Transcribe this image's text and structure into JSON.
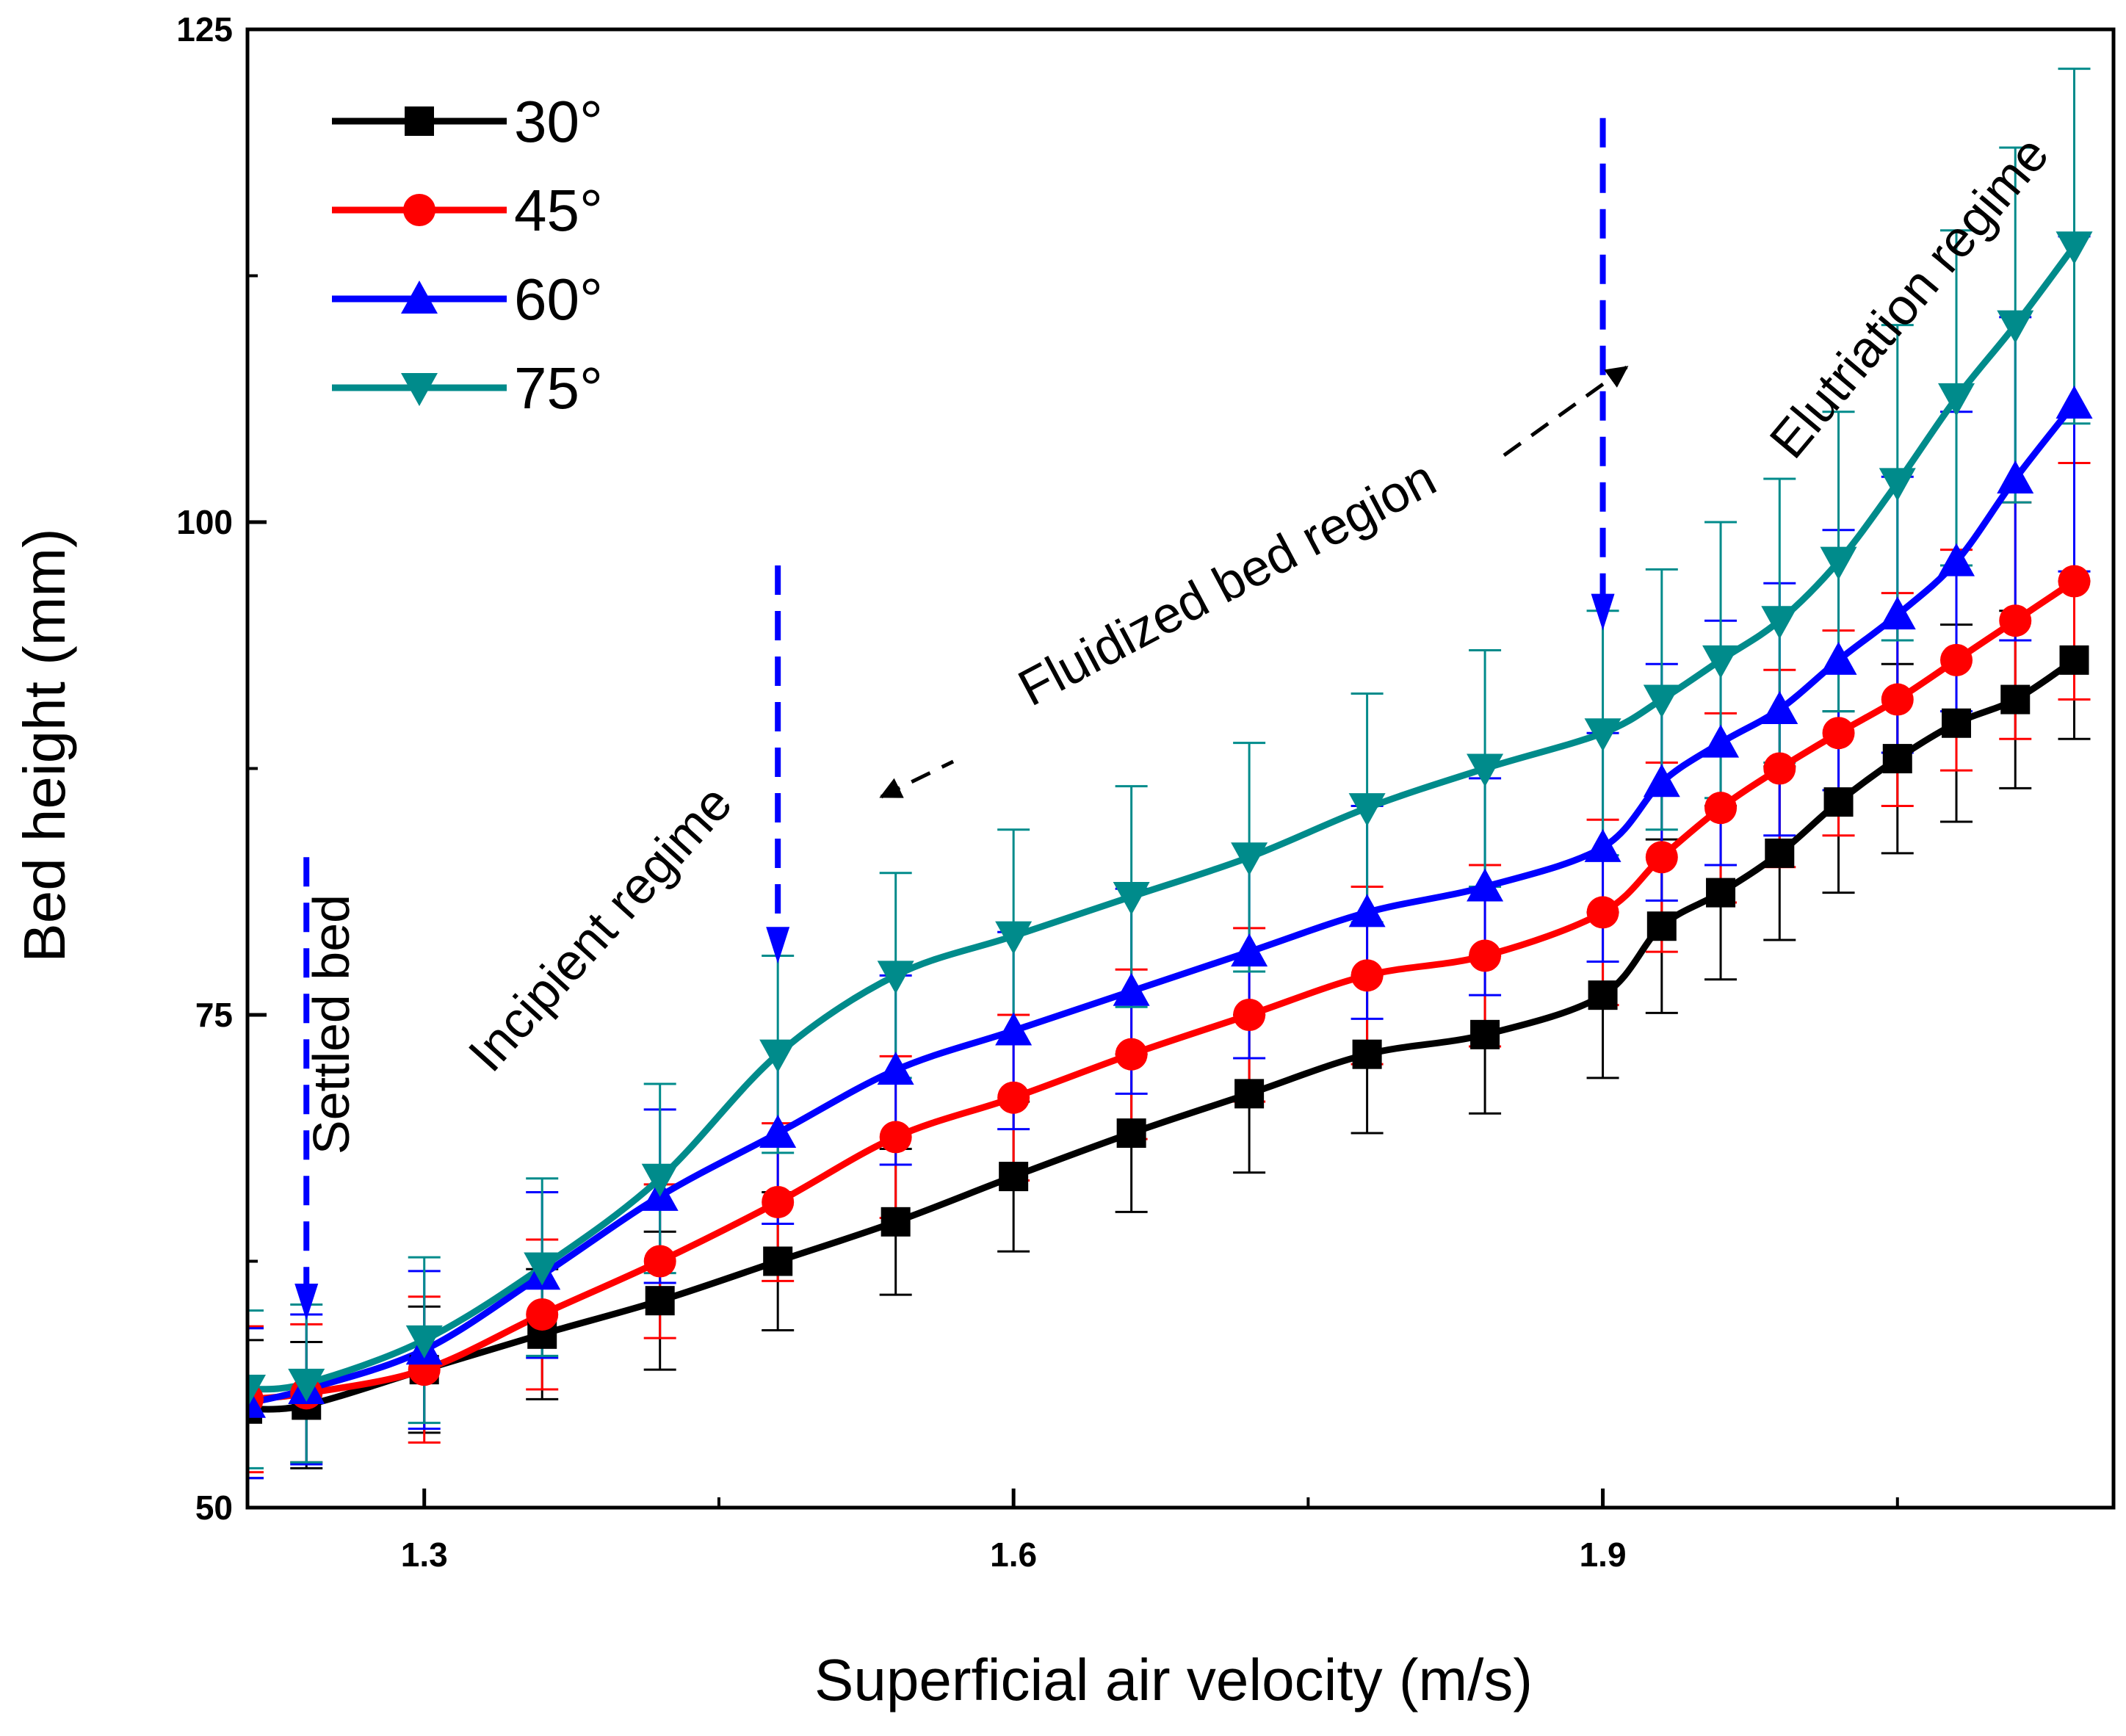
{
  "chart_data": {
    "type": "line",
    "title": "",
    "xlabel": "Superficial air velocity (m/s)",
    "ylabel": "Bed height (mm)",
    "xlim": [
      1.21,
      2.16
    ],
    "ylim": [
      50,
      125
    ],
    "xticks": [
      1.3,
      1.6,
      1.9
    ],
    "xtick_labels": [
      "1.3",
      "1.6",
      "1.9"
    ],
    "xminor": [
      1.45,
      1.75,
      2.05
    ],
    "yticks": [
      50,
      75,
      100,
      125
    ],
    "ytick_labels": [
      "50",
      "75",
      "100",
      "125"
    ],
    "yminor": [
      62.5,
      87.5,
      112.5
    ],
    "grid": false,
    "legend_position": "top-left",
    "x": [
      1.21,
      1.24,
      1.3,
      1.36,
      1.42,
      1.48,
      1.54,
      1.6,
      1.66,
      1.72,
      1.78,
      1.84,
      1.9,
      1.93,
      1.96,
      1.99,
      2.02,
      2.05,
      2.08,
      2.11,
      2.14
    ],
    "series": [
      {
        "name": "30°",
        "color": "#000000",
        "marker": "square",
        "values": [
          55,
          55.2,
          57,
          58.8,
          60.5,
          62.5,
          64.5,
          66.8,
          69,
          71,
          73,
          74,
          76,
          79.5,
          81.2,
          83.2,
          85.8,
          88,
          89.8,
          91,
          93
        ],
        "errors": [
          3.5,
          3.2,
          3.2,
          3.3,
          3.5,
          3.5,
          3.7,
          3.8,
          4,
          4,
          4,
          4,
          4.2,
          4.4,
          4.4,
          4.4,
          4.6,
          4.8,
          5,
          4.5,
          4
        ]
      },
      {
        "name": "45°",
        "color": "#ff0000",
        "marker": "circle",
        "values": [
          55.5,
          55.8,
          57,
          59.8,
          62.5,
          65.5,
          68.8,
          70.8,
          73,
          75,
          77,
          78,
          80.2,
          83,
          85.5,
          87.5,
          89.3,
          91,
          93,
          95,
          97
        ],
        "errors": [
          3.7,
          3.5,
          3.7,
          3.8,
          3.9,
          4,
          4.1,
          4.2,
          4.3,
          4.4,
          4.5,
          4.6,
          4.7,
          4.8,
          4.8,
          5,
          5.2,
          5.4,
          5.6,
          6,
          6
        ]
      },
      {
        "name": "60°",
        "color": "#0000ff",
        "marker": "triangle-up",
        "values": [
          55.3,
          56,
          58,
          61.8,
          65.8,
          69,
          72.2,
          74.2,
          76.2,
          78.2,
          80.2,
          81.5,
          83.5,
          86.8,
          88.8,
          90.5,
          93,
          95.3,
          98,
          102.2,
          106
        ],
        "errors": [
          3.8,
          3.8,
          4,
          4.2,
          4.4,
          4.6,
          4.8,
          5,
          5.2,
          5.4,
          5.4,
          5.5,
          5.8,
          6,
          6.2,
          6.4,
          6.6,
          7,
          7.6,
          8.2,
          8.5
        ]
      },
      {
        "name": "75°",
        "color": "#008b8b",
        "marker": "triangle-down",
        "values": [
          56,
          56.3,
          58.5,
          62.2,
          66.7,
          73,
          77,
          79,
          81,
          83,
          85.5,
          87.5,
          89.3,
          91,
          93,
          95,
          98,
          102,
          106.3,
          110,
          114
        ],
        "errors": [
          4,
          4,
          4.2,
          4.5,
          4.8,
          5,
          5.2,
          5.4,
          5.6,
          5.8,
          5.8,
          6,
          6.2,
          6.6,
          7,
          7.2,
          7.6,
          8,
          8.5,
          9,
          9
        ]
      }
    ],
    "annotations": [
      {
        "text": "Settled bed",
        "color": "#000000"
      },
      {
        "text": "Incipient regime",
        "color": "#000000"
      },
      {
        "text": "Fluidized bed region",
        "color": "#000000"
      },
      {
        "text": "Elutriation regime",
        "color": "#000000"
      }
    ],
    "regime_markers": [
      {
        "x": 1.24,
        "from_y": 83,
        "to_y": 59.5,
        "color": "#0000ff"
      },
      {
        "x": 1.48,
        "from_y": 97.8,
        "to_y": 77.6,
        "color": "#0000ff"
      },
      {
        "x": 1.9,
        "from_y": 120.5,
        "to_y": 94.5,
        "color": "#0000ff"
      }
    ],
    "range_arrow": {
      "from_x": 1.48,
      "to_x": 1.9,
      "color": "#000000"
    }
  }
}
